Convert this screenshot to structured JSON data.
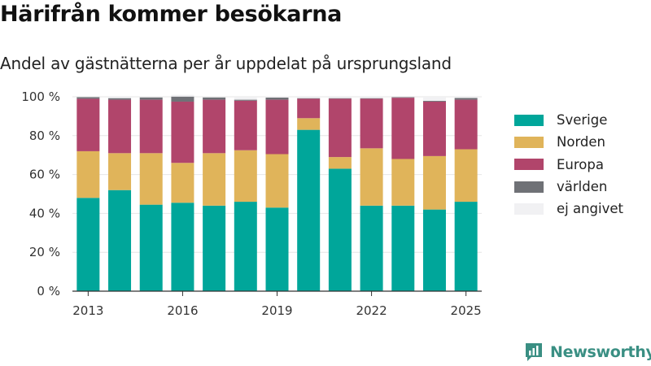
{
  "header": {
    "title": "Härifrån kommer besökarna",
    "subtitle": "Andel av gästnätterna per år uppdelat på ursprungsland"
  },
  "brand": {
    "name": "Newsworthy"
  },
  "chart_data": {
    "type": "bar",
    "stacked": true,
    "categories": [
      "2013",
      "2014",
      "2015",
      "2016",
      "2017",
      "2018",
      "2019",
      "2020",
      "2021",
      "2022",
      "2023",
      "2024",
      "2025"
    ],
    "x_tick_labels": [
      "2013",
      "2016",
      "2019",
      "2022",
      "2025"
    ],
    "y_ticks": [
      0,
      20,
      40,
      60,
      80,
      100
    ],
    "y_tick_suffix": " %",
    "ylim": [
      0,
      100
    ],
    "grid": true,
    "legend_position": "right",
    "series": [
      {
        "name": "Sverige",
        "color": "#00a69a",
        "values": [
          48,
          52,
          44.5,
          45.5,
          44,
          46,
          43,
          83,
          63,
          44,
          44,
          42,
          46
        ]
      },
      {
        "name": "Norden",
        "color": "#e0b45a",
        "values": [
          24,
          19,
          26.5,
          20.5,
          27,
          26.5,
          27.5,
          6,
          6,
          29.5,
          24,
          27.5,
          27
        ]
      },
      {
        "name": "Europa",
        "color": "#b1456b",
        "values": [
          27,
          27.5,
          27.5,
          31.5,
          27.5,
          25.5,
          28,
          10,
          30,
          25.5,
          31.5,
          28,
          25.5
        ]
      },
      {
        "name": "världen",
        "color": "#6f7176",
        "values": [
          0.8,
          0.8,
          1.2,
          2.6,
          1.2,
          0.5,
          1.1,
          0.3,
          0.3,
          0.3,
          0.3,
          0.4,
          0.9
        ]
      },
      {
        "name": "ej angivet",
        "color": "#f1f1f3",
        "values": [
          0.2,
          0.7,
          0.3,
          0.9,
          0.3,
          1.5,
          0.4,
          0.7,
          0.7,
          0.7,
          0.2,
          2.1,
          0.6
        ]
      }
    ]
  }
}
